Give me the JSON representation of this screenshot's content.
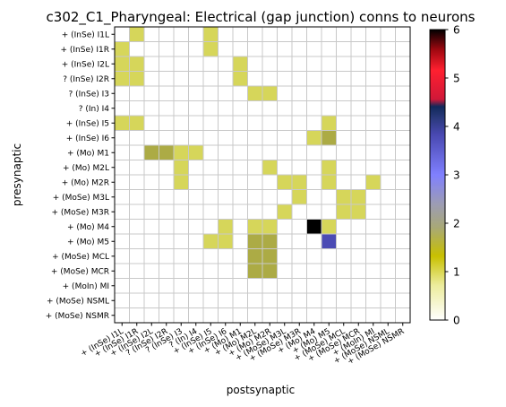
{
  "chart_data": {
    "type": "heatmap",
    "title": "c302_C1_Pharyngeal: Electrical (gap junction) conns to neurons",
    "xlabel": "postsynaptic",
    "ylabel": "presynaptic",
    "labels": [
      "+ (InSe) I1L",
      "+ (InSe) I1R",
      "+ (InSe) I2L",
      "? (InSe) I2R",
      "? (InSe) I3",
      "? (In) I4",
      "+ (InSe) I5",
      "+ (InSe) I6",
      "+ (Mo) M1",
      "+ (Mo) M2L",
      "+ (Mo) M2R",
      "+ (MoSe) M3L",
      "+ (MoSe) M3R",
      "+ (Mo) M4",
      "+ (Mo) M5",
      "+ (MoSe) MCL",
      "+ (MoSe) MCR",
      "+ (MoIn) MI",
      "+ (MoSe) NSML",
      "+ (MoSe) NSMR"
    ],
    "x_tick_labels": [
      "+ (InSe) I1L",
      "+ (InSe) I1R",
      "+ (InSe) I2L",
      "? (InSe) I2R",
      "? (InSe) I3",
      "? (In) I4",
      "+ (InSe) I5",
      "+ (InSe) I6",
      "+ (Mo) M1",
      "+ (Mo) M2L",
      "+ (Mo) M2R",
      "+ (MoSe) M3L",
      "+ (MoSe) M3R",
      "+ (Mo) M4",
      "+ (Mo) M5",
      "+ (MoSe) MCL",
      "+ (MoSe) MCR",
      "+ (MoIn) MI",
      "+ (MoSe) NSML",
      "+ (MoSe) NSMR"
    ],
    "matrix": [
      [
        0,
        1,
        0,
        0,
        0,
        0,
        1,
        0,
        0,
        0,
        0,
        0,
        0,
        0,
        0,
        0,
        0,
        0,
        0,
        0
      ],
      [
        1,
        0,
        0,
        0,
        0,
        0,
        1,
        0,
        0,
        0,
        0,
        0,
        0,
        0,
        0,
        0,
        0,
        0,
        0,
        0
      ],
      [
        1,
        1,
        0,
        0,
        0,
        0,
        0,
        0,
        1,
        0,
        0,
        0,
        0,
        0,
        0,
        0,
        0,
        0,
        0,
        0
      ],
      [
        1,
        1,
        0,
        0,
        0,
        0,
        0,
        0,
        1,
        0,
        0,
        0,
        0,
        0,
        0,
        0,
        0,
        0,
        0,
        0
      ],
      [
        0,
        0,
        0,
        0,
        0,
        0,
        0,
        0,
        0,
        1,
        1,
        0,
        0,
        0,
        0,
        0,
        0,
        0,
        0,
        0
      ],
      [
        0,
        0,
        0,
        0,
        0,
        0,
        0,
        0,
        0,
        0,
        0,
        0,
        0,
        0,
        0,
        0,
        0,
        0,
        0,
        0
      ],
      [
        1,
        1,
        0,
        0,
        0,
        0,
        0,
        0,
        0,
        0,
        0,
        0,
        0,
        0,
        1,
        0,
        0,
        0,
        0,
        0
      ],
      [
        0,
        0,
        0,
        0,
        0,
        0,
        0,
        0,
        0,
        0,
        0,
        0,
        0,
        1,
        2,
        0,
        0,
        0,
        0,
        0
      ],
      [
        0,
        0,
        2,
        2,
        1,
        1,
        0,
        0,
        0,
        0,
        0,
        0,
        0,
        0,
        0,
        0,
        0,
        0,
        0,
        0
      ],
      [
        0,
        0,
        0,
        0,
        1,
        0,
        0,
        0,
        0,
        0,
        1,
        0,
        0,
        0,
        1,
        0,
        0,
        0,
        0,
        0
      ],
      [
        0,
        0,
        0,
        0,
        1,
        0,
        0,
        0,
        0,
        0,
        0,
        1,
        1,
        0,
        1,
        0,
        0,
        1,
        0,
        0
      ],
      [
        0,
        0,
        0,
        0,
        0,
        0,
        0,
        0,
        0,
        0,
        0,
        0,
        1,
        0,
        0,
        1,
        1,
        0,
        0,
        0
      ],
      [
        0,
        0,
        0,
        0,
        0,
        0,
        0,
        0,
        0,
        0,
        0,
        1,
        0,
        0,
        0,
        1,
        1,
        0,
        0,
        0
      ],
      [
        0,
        0,
        0,
        0,
        0,
        0,
        0,
        1,
        0,
        1,
        1,
        0,
        0,
        6,
        1,
        0,
        0,
        0,
        0,
        0
      ],
      [
        0,
        0,
        0,
        0,
        0,
        0,
        1,
        1,
        0,
        2,
        2,
        0,
        0,
        0,
        4,
        0,
        0,
        0,
        0,
        0
      ],
      [
        0,
        0,
        0,
        0,
        0,
        0,
        0,
        0,
        0,
        2,
        2,
        0,
        0,
        0,
        0,
        0,
        0,
        0,
        0,
        0
      ],
      [
        0,
        0,
        0,
        0,
        0,
        0,
        0,
        0,
        0,
        2,
        2,
        0,
        0,
        0,
        0,
        0,
        0,
        0,
        0,
        0
      ],
      [
        0,
        0,
        0,
        0,
        0,
        0,
        0,
        0,
        0,
        0,
        0,
        0,
        0,
        0,
        0,
        0,
        0,
        0,
        0,
        0
      ],
      [
        0,
        0,
        0,
        0,
        0,
        0,
        0,
        0,
        0,
        0,
        0,
        0,
        0,
        0,
        0,
        0,
        0,
        0,
        0,
        0
      ],
      [
        0,
        0,
        0,
        0,
        0,
        0,
        0,
        0,
        0,
        0,
        0,
        0,
        0,
        0,
        0,
        0,
        0,
        0,
        0,
        0
      ]
    ],
    "vmin": 0,
    "vmax": 6,
    "colormap": "gist_stern_r",
    "colorbar_ticks": [
      0,
      1,
      2,
      3,
      4,
      5,
      6
    ],
    "grid": true,
    "colors": {
      "v1": "#d6d65a",
      "v2": "#acab45",
      "v4": "#4b4bb4",
      "v6": "#000000",
      "grid": "#c8c8c8"
    }
  }
}
